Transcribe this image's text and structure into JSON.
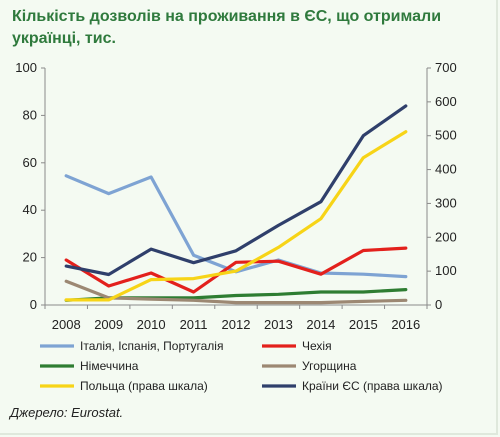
{
  "title_line1": "Кількість дозволів на проживання в ЄС, що отримали",
  "title_line2": "українці, тис.",
  "source": "Джерело: Eurostat.",
  "chart_data": {
    "type": "line",
    "title": "Кількість дозволів на проживання в ЄС, що отримали українці, тис.",
    "x": [
      "2008",
      "2009",
      "2010",
      "2011",
      "2012",
      "2013",
      "2014",
      "2015",
      "2016"
    ],
    "ylim_left": [
      0,
      100
    ],
    "yticks_left": [
      "0",
      "20",
      "40",
      "60",
      "80",
      "100"
    ],
    "ylim_right": [
      0,
      700
    ],
    "yticks_right": [
      "0",
      "100",
      "200",
      "300",
      "400",
      "500",
      "600",
      "700"
    ],
    "grid": false,
    "legend_position": "bottom",
    "series": [
      {
        "name": "Італія, Іспанія, Португалія",
        "axis": "left",
        "color": "#7ea3d3",
        "values": [
          54.5,
          47,
          54,
          21,
          14,
          19,
          13.5,
          13,
          12
        ]
      },
      {
        "name": "Чехія",
        "axis": "left",
        "color": "#e3201c",
        "values": [
          19,
          8,
          13.5,
          5.5,
          18,
          18.5,
          13,
          23,
          24
        ]
      },
      {
        "name": "Німеччина",
        "axis": "left",
        "color": "#2e7d32",
        "values": [
          2,
          3,
          3,
          3,
          4,
          4.5,
          5.5,
          5.5,
          6.5
        ]
      },
      {
        "name": "Угорщина",
        "axis": "left",
        "color": "#9c8873",
        "values": [
          10,
          3,
          2.5,
          2,
          1,
          1,
          1,
          1.5,
          2
        ]
      },
      {
        "name": "Польща (права шкала)",
        "axis": "right",
        "color": "#f7d417",
        "values": [
          15,
          15,
          75,
          78,
          100,
          170,
          255,
          435,
          512
        ]
      },
      {
        "name": "Країни ЄС (права шкала)",
        "axis": "right",
        "color": "#2f3f6b",
        "values": [
          115,
          90,
          165,
          125,
          160,
          235,
          305,
          500,
          588
        ]
      }
    ]
  }
}
